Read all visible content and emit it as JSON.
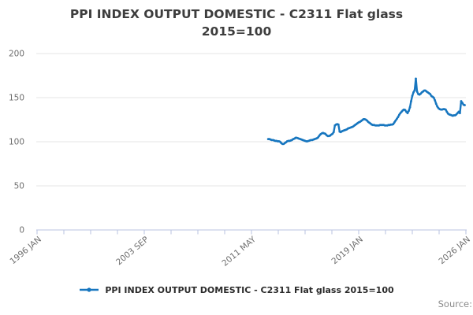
{
  "title": {
    "line1": "PPI INDEX OUTPUT DOMESTIC - C2311 Flat glass",
    "line2": "2015=100"
  },
  "legend": {
    "label": "PPI INDEX OUTPUT DOMESTIC - C2311 Flat glass 2015=100"
  },
  "source_label": "Source:",
  "colors": {
    "line": "#1776bf",
    "grid": "#e4e4e4",
    "axis": "#b9c3e0",
    "tick_text": "#6e6e6e",
    "title_text": "#3d3d3d",
    "legend_text": "#2b2b2b",
    "source_text": "#8c8c8c"
  },
  "chart_data": {
    "type": "line",
    "title": "PPI INDEX OUTPUT DOMESTIC - C2311 Flat glass 2015=100",
    "xlabel": "",
    "ylabel": "",
    "ylim": [
      0,
      210
    ],
    "y_ticks": [
      0,
      50,
      100,
      150,
      200
    ],
    "grid": "horizontal",
    "legend_position": "bottom",
    "x_axis_start_month": "1996-01",
    "x_axis_end_month": "2026-01",
    "x_minor_tick_count": 17,
    "x_label_every": 4,
    "x_tick_labels": [
      "1996 JAN",
      "2003 SEP",
      "2011 MAY",
      "2019 JAN",
      "2026 JAN"
    ],
    "series": [
      {
        "name": "PPI INDEX OUTPUT DOMESTIC - C2311 Flat glass 2015=100",
        "frequency": "monthly",
        "start_month": "2012-03",
        "values": [
          103,
          103,
          102.5,
          102,
          102,
          101.5,
          101,
          101,
          100.5,
          100.5,
          100,
          98.5,
          97.5,
          97.5,
          98.5,
          99.5,
          100.5,
          101,
          101,
          101.5,
          102,
          103,
          103.5,
          104.5,
          104.5,
          104,
          103.5,
          103,
          102.5,
          102,
          101.5,
          101,
          100.5,
          100.5,
          101,
          101.5,
          102,
          102,
          102.5,
          103,
          103.5,
          104,
          105,
          107,
          108.5,
          109.5,
          110,
          109.5,
          109,
          107.5,
          106.5,
          106.5,
          107,
          108,
          109,
          111,
          118.5,
          119.5,
          120,
          119.5,
          111.5,
          111,
          112,
          112.5,
          113,
          113.5,
          114,
          115,
          115.5,
          116,
          116.5,
          117,
          118,
          119,
          120,
          121,
          122,
          122.5,
          123.5,
          124.5,
          125.5,
          125.5,
          125,
          124,
          122.5,
          121.5,
          120.5,
          119.5,
          119,
          119,
          118.5,
          118.5,
          118.5,
          118.5,
          119,
          119,
          119,
          119,
          118.5,
          118.5,
          118.5,
          119,
          119,
          119.5,
          119.5,
          120,
          122,
          124,
          126,
          128,
          130.5,
          132.5,
          134,
          135.5,
          136.5,
          136,
          134,
          132.5,
          135,
          139,
          146,
          152,
          156,
          158.5,
          171.5,
          157,
          154,
          153.5,
          154.5,
          156,
          157,
          158,
          158,
          157,
          156,
          155,
          154,
          152,
          151,
          150,
          147,
          143,
          140,
          138,
          137,
          136.5,
          136.5,
          137,
          137,
          136.5,
          134,
          132,
          131,
          130.5,
          130,
          129.5,
          130,
          130,
          131,
          132.5,
          134,
          132.5,
          146,
          144,
          142,
          141.5
        ]
      }
    ]
  }
}
